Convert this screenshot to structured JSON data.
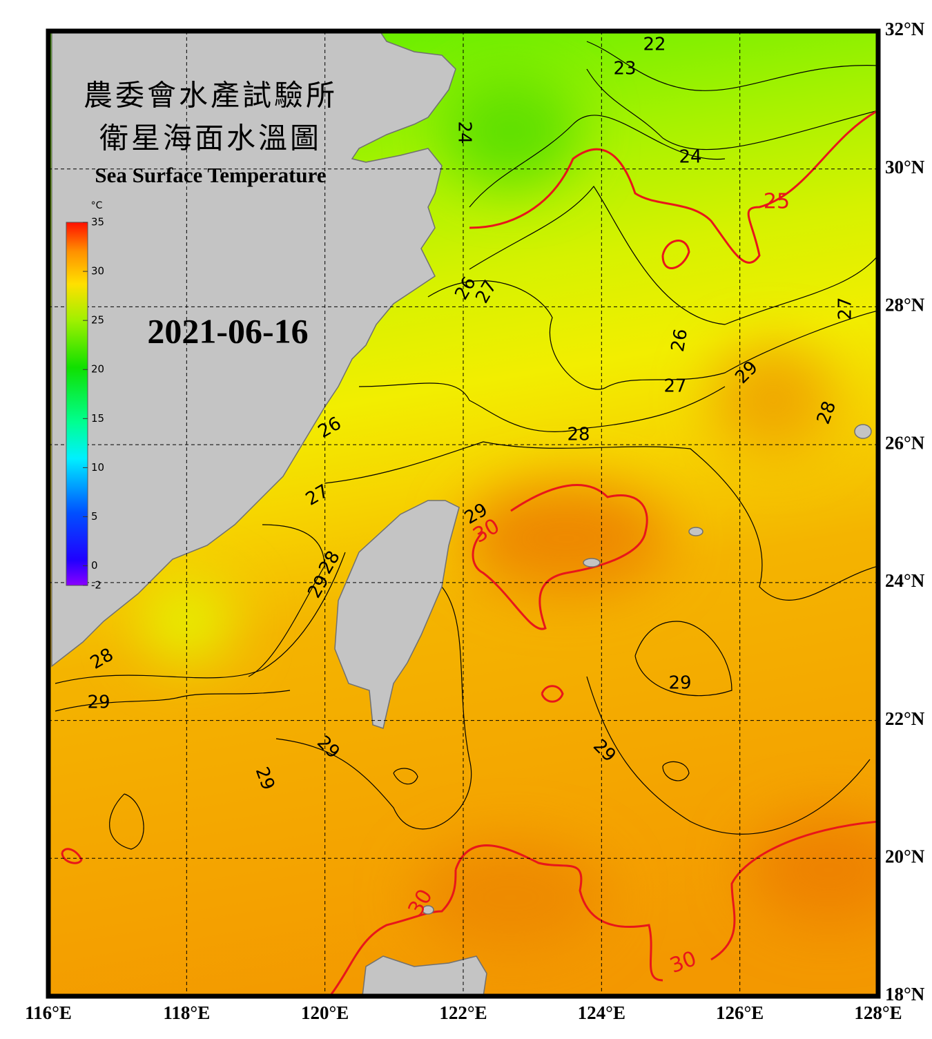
{
  "header": {
    "title_zh_1": "農委會水產試驗所",
    "title_zh_2": "衛星海面水溫圖",
    "title_en": "Sea Surface Temperature",
    "date": "2021-06-16"
  },
  "colorbar": {
    "unit": "°C",
    "range": [
      -2,
      35
    ],
    "ticks": [
      -2,
      0,
      5,
      10,
      15,
      20,
      25,
      30,
      35
    ]
  },
  "map": {
    "lonlim": [
      116,
      128
    ],
    "latlim": [
      18,
      32
    ],
    "lon_ticks": [
      {
        "value": 116,
        "label": "116°E"
      },
      {
        "value": 118,
        "label": "118°E"
      },
      {
        "value": 120,
        "label": "120°E"
      },
      {
        "value": 122,
        "label": "122°E"
      },
      {
        "value": 124,
        "label": "124°E"
      },
      {
        "value": 126,
        "label": "126°E"
      },
      {
        "value": 128,
        "label": "128°E"
      }
    ],
    "lat_ticks": [
      {
        "value": 18,
        "label": "18°N"
      },
      {
        "value": 20,
        "label": "20°N"
      },
      {
        "value": 22,
        "label": "22°N"
      },
      {
        "value": 24,
        "label": "24°N"
      },
      {
        "value": 26,
        "label": "26°N"
      },
      {
        "value": 28,
        "label": "28°N"
      },
      {
        "value": 30,
        "label": "30°N"
      },
      {
        "value": 32,
        "label": "32°N"
      }
    ],
    "contour_labels": [
      22,
      23,
      24,
      24,
      25,
      26,
      27,
      26,
      27,
      27,
      29,
      28,
      28,
      26,
      27,
      29,
      30,
      28,
      29,
      28,
      29,
      29,
      29,
      29,
      29,
      30,
      30
    ]
  }
}
